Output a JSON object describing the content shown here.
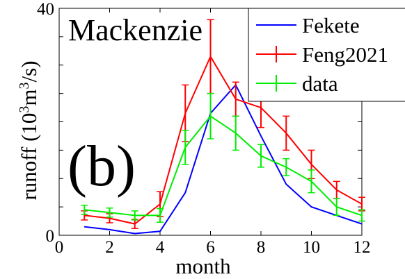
{
  "chart_data": {
    "type": "line",
    "title": "Mackenzie",
    "panel_label": "(b)",
    "xlabel": "month",
    "ylabel": "runoff (10",
    "ylabel_sup": "3",
    "ylabel_unit": "m",
    "ylabel_sup2": "3",
    "ylabel_tail": "/s)",
    "xlim": [
      0,
      12
    ],
    "ylim": [
      0,
      40
    ],
    "x_ticks": [
      "0",
      "2",
      "4",
      "6",
      "8",
      "10",
      "12"
    ],
    "x_tick_values": [
      0,
      2,
      4,
      6,
      8,
      10,
      12
    ],
    "y_ticks": [
      "0",
      "40"
    ],
    "y_tick_values": [
      0,
      40
    ],
    "grid": false,
    "legend_position": "top-right",
    "x": [
      1,
      2,
      3,
      4,
      5,
      6,
      7,
      8,
      9,
      10,
      11,
      12
    ],
    "series": [
      {
        "name": "Fekete",
        "color": "#0000ff",
        "values": [
          1.5,
          1.0,
          0.3,
          0.7,
          7.5,
          21.5,
          26.5,
          17.5,
          9.0,
          5.0,
          3.5,
          2.0
        ],
        "errors": null
      },
      {
        "name": "Feng2021",
        "color": "#ff0000",
        "values": [
          3.5,
          3.0,
          2.0,
          5.5,
          21.5,
          31.5,
          24.0,
          22.5,
          18.0,
          12.5,
          8.0,
          5.5
        ],
        "errors": [
          0.8,
          0.8,
          0.8,
          2.2,
          5.0,
          6.5,
          3.0,
          3.5,
          3.0,
          2.5,
          1.5,
          1.2
        ]
      },
      {
        "name": "data",
        "color": "#00ee00",
        "values": [
          4.5,
          4.0,
          3.5,
          3.5,
          15.5,
          21.0,
          18.0,
          14.0,
          12.0,
          9.5,
          5.0,
          3.5
        ],
        "errors": [
          0.8,
          0.8,
          0.8,
          1.2,
          3.0,
          4.0,
          3.0,
          2.0,
          1.5,
          2.0,
          1.5,
          1.0
        ]
      }
    ]
  }
}
